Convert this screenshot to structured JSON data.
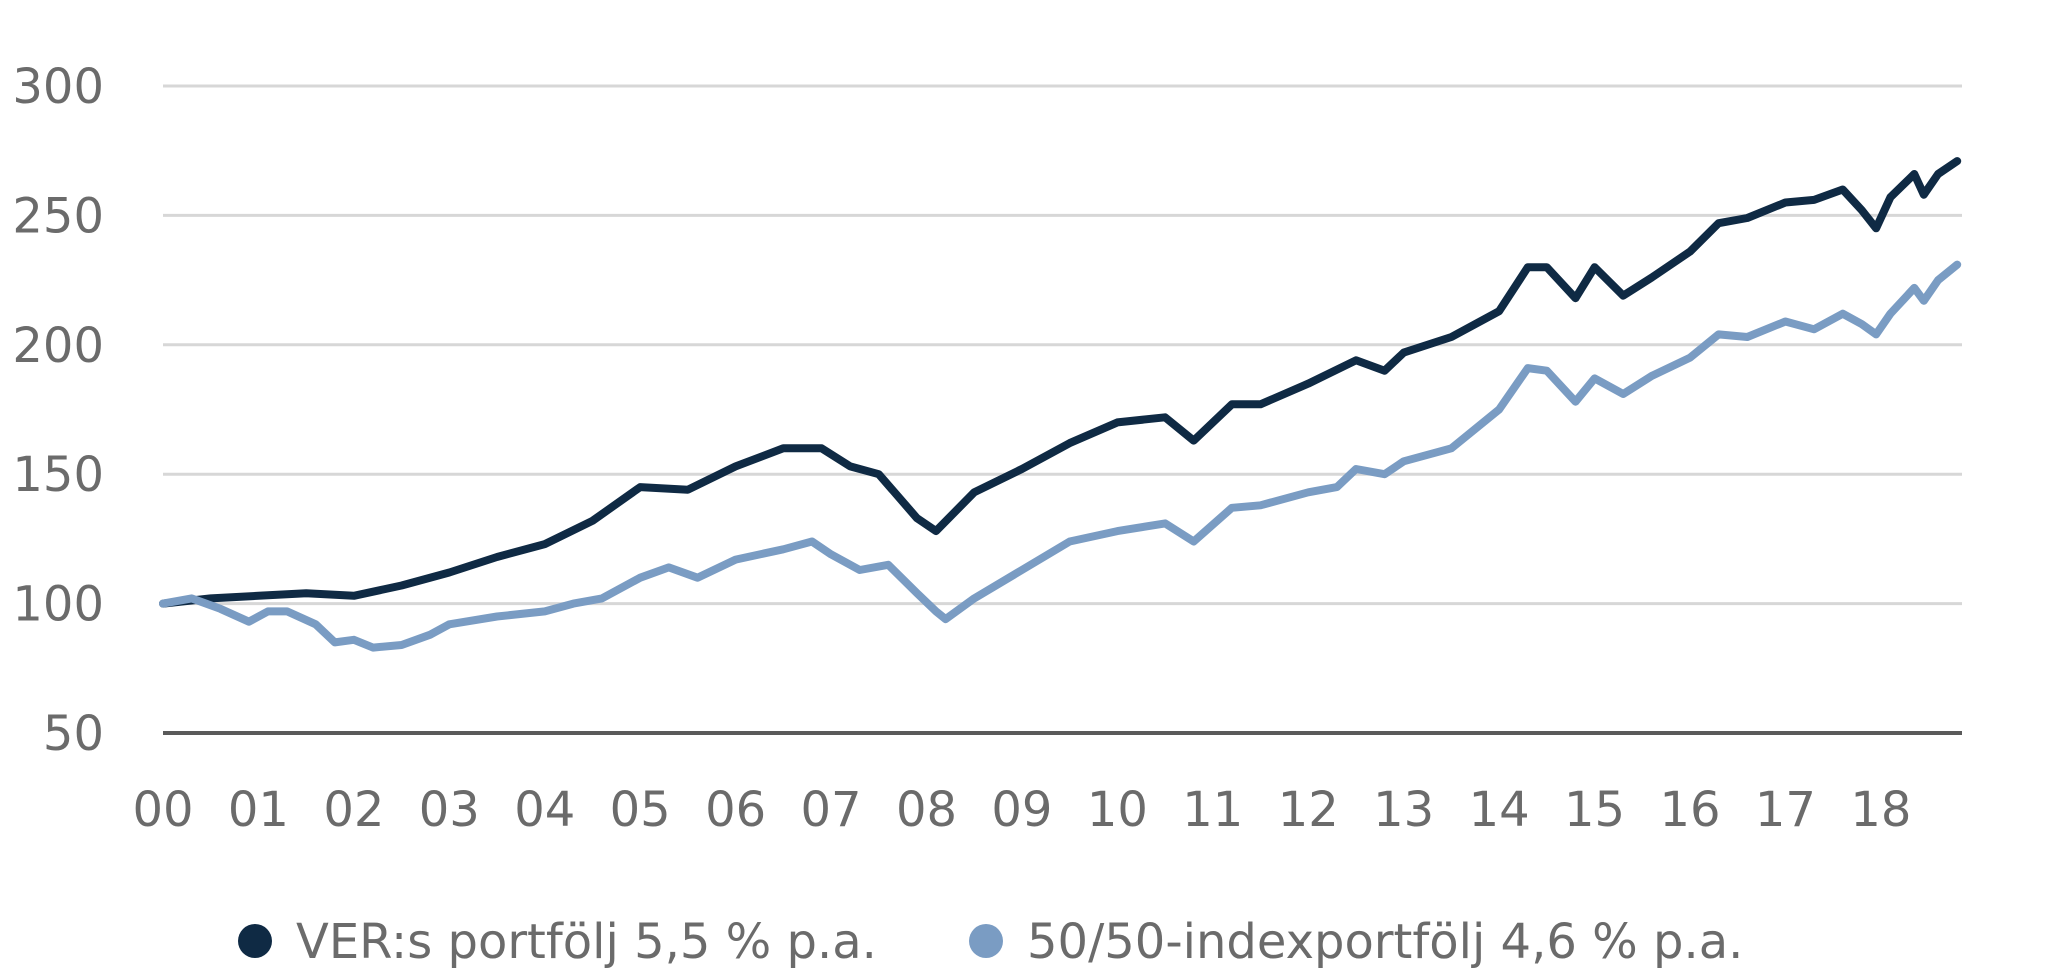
{
  "chart_data": {
    "type": "line",
    "title": "",
    "xlabel": "",
    "ylabel": "",
    "ylim": [
      50,
      300
    ],
    "y_ticks": [
      50,
      100,
      150,
      200,
      250,
      300
    ],
    "x_ticks": [
      "00",
      "01",
      "02",
      "03",
      "04",
      "05",
      "06",
      "07",
      "08",
      "09",
      "10",
      "11",
      "12",
      "13",
      "14",
      "15",
      "16",
      "17",
      "18"
    ],
    "xlim": [
      2000.0,
      2018.8
    ],
    "grid": true,
    "legend_position": "bottom",
    "series": [
      {
        "name": "VER:s portfölj 5,5 % p.a.",
        "color": "#0f2a44",
        "points": [
          [
            2000.0,
            100
          ],
          [
            2000.5,
            102
          ],
          [
            2001.0,
            103
          ],
          [
            2001.5,
            104
          ],
          [
            2002.0,
            103
          ],
          [
            2002.5,
            107
          ],
          [
            2003.0,
            112
          ],
          [
            2003.5,
            118
          ],
          [
            2004.0,
            123
          ],
          [
            2004.5,
            132
          ],
          [
            2005.0,
            145
          ],
          [
            2005.5,
            144
          ],
          [
            2006.0,
            153
          ],
          [
            2006.5,
            160
          ],
          [
            2006.9,
            160
          ],
          [
            2007.2,
            153
          ],
          [
            2007.5,
            150
          ],
          [
            2007.9,
            133
          ],
          [
            2008.1,
            128
          ],
          [
            2008.5,
            143
          ],
          [
            2009.0,
            152
          ],
          [
            2009.5,
            162
          ],
          [
            2010.0,
            170
          ],
          [
            2010.5,
            172
          ],
          [
            2010.8,
            163
          ],
          [
            2011.2,
            177
          ],
          [
            2011.5,
            177
          ],
          [
            2012.0,
            185
          ],
          [
            2012.5,
            194
          ],
          [
            2012.8,
            190
          ],
          [
            2013.0,
            197
          ],
          [
            2013.5,
            203
          ],
          [
            2014.0,
            213
          ],
          [
            2014.3,
            230
          ],
          [
            2014.5,
            230
          ],
          [
            2014.8,
            218
          ],
          [
            2015.0,
            230
          ],
          [
            2015.3,
            219
          ],
          [
            2015.6,
            226
          ],
          [
            2016.0,
            236
          ],
          [
            2016.3,
            247
          ],
          [
            2016.6,
            249
          ],
          [
            2017.0,
            255
          ],
          [
            2017.3,
            256
          ],
          [
            2017.6,
            260
          ],
          [
            2017.8,
            252
          ],
          [
            2017.95,
            245
          ],
          [
            2018.1,
            257
          ],
          [
            2018.35,
            266
          ],
          [
            2018.45,
            258
          ],
          [
            2018.6,
            266
          ],
          [
            2018.8,
            271
          ]
        ]
      },
      {
        "name": "50/50-indexportfölj 4,6 % p.a.",
        "color": "#7a9cc3",
        "points": [
          [
            2000.0,
            100
          ],
          [
            2000.3,
            102
          ],
          [
            2000.6,
            98
          ],
          [
            2000.9,
            93
          ],
          [
            2001.1,
            97
          ],
          [
            2001.3,
            97
          ],
          [
            2001.6,
            92
          ],
          [
            2001.8,
            85
          ],
          [
            2002.0,
            86
          ],
          [
            2002.2,
            83
          ],
          [
            2002.5,
            84
          ],
          [
            2002.8,
            88
          ],
          [
            2003.0,
            92
          ],
          [
            2003.5,
            95
          ],
          [
            2004.0,
            97
          ],
          [
            2004.3,
            100
          ],
          [
            2004.6,
            102
          ],
          [
            2005.0,
            110
          ],
          [
            2005.3,
            114
          ],
          [
            2005.6,
            110
          ],
          [
            2006.0,
            117
          ],
          [
            2006.5,
            121
          ],
          [
            2006.8,
            124
          ],
          [
            2007.0,
            119
          ],
          [
            2007.3,
            113
          ],
          [
            2007.6,
            115
          ],
          [
            2007.9,
            104
          ],
          [
            2008.1,
            97
          ],
          [
            2008.2,
            94
          ],
          [
            2008.5,
            102
          ],
          [
            2009.0,
            113
          ],
          [
            2009.5,
            124
          ],
          [
            2010.0,
            128
          ],
          [
            2010.5,
            131
          ],
          [
            2010.8,
            124
          ],
          [
            2011.2,
            137
          ],
          [
            2011.5,
            138
          ],
          [
            2012.0,
            143
          ],
          [
            2012.3,
            145
          ],
          [
            2012.5,
            152
          ],
          [
            2012.8,
            150
          ],
          [
            2013.0,
            155
          ],
          [
            2013.5,
            160
          ],
          [
            2014.0,
            175
          ],
          [
            2014.3,
            191
          ],
          [
            2014.5,
            190
          ],
          [
            2014.8,
            178
          ],
          [
            2015.0,
            187
          ],
          [
            2015.3,
            181
          ],
          [
            2015.6,
            188
          ],
          [
            2016.0,
            195
          ],
          [
            2016.3,
            204
          ],
          [
            2016.6,
            203
          ],
          [
            2017.0,
            209
          ],
          [
            2017.3,
            206
          ],
          [
            2017.6,
            212
          ],
          [
            2017.8,
            208
          ],
          [
            2017.95,
            204
          ],
          [
            2018.1,
            212
          ],
          [
            2018.35,
            222
          ],
          [
            2018.45,
            217
          ],
          [
            2018.6,
            225
          ],
          [
            2018.8,
            231
          ]
        ]
      }
    ]
  }
}
